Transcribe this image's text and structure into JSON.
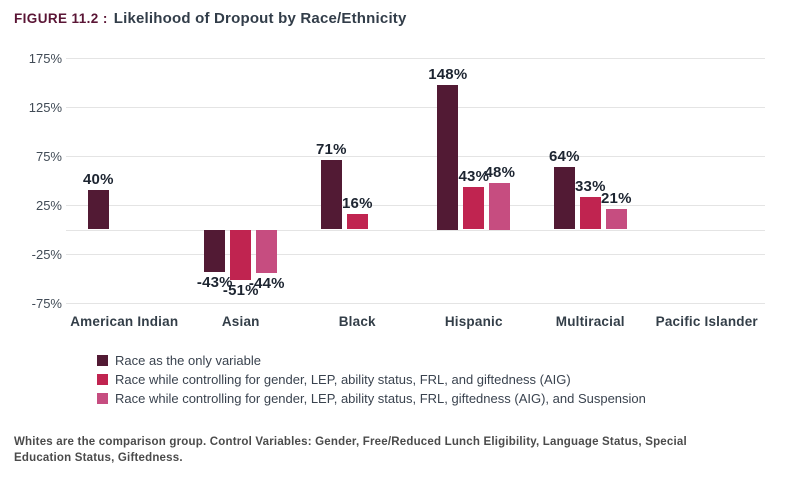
{
  "figure": {
    "label": "FIGURE 11.2 :",
    "title": "Likelihood of Dropout by Race/Ethnicity"
  },
  "chart_data": {
    "type": "bar",
    "title": "Likelihood of Dropout by Race/Ethnicity",
    "categories": [
      "American Indian",
      "Asian",
      "Black",
      "Hispanic",
      "Multiracial",
      "Pacific Islander"
    ],
    "series": [
      {
        "name": "Race as the only variable",
        "color": "#521a34",
        "values": [
          40,
          -43,
          71,
          148,
          64,
          null
        ]
      },
      {
        "name": "Race while controlling for gender, LEP, ability status, FRL, and giftedness (AIG)",
        "color": "#c02450",
        "values": [
          null,
          -51,
          16,
          43,
          33,
          null
        ]
      },
      {
        "name": "Race while controlling for gender, LEP, ability status, FRL, giftedness (AIG), and Suspension",
        "color": "#c64d80",
        "values": [
          null,
          -44,
          null,
          48,
          21,
          null
        ]
      }
    ],
    "y_ticks": [
      175,
      125,
      75,
      25,
      -25,
      -75
    ],
    "y_tick_labels": [
      "175%",
      "125%",
      "75%",
      "25%",
      "-25%",
      "-75%"
    ],
    "ylim": [
      -75,
      175
    ],
    "zero_baseline": 0,
    "value_label_suffix": "%",
    "grid": true,
    "legend_position": "bottom",
    "grid_color": "#e4e4e4"
  },
  "footnote": "Whites are the comparison group. Control Variables: Gender, Free/Reduced Lunch Eligibility, Language Status, Special Education Status, Giftedness."
}
